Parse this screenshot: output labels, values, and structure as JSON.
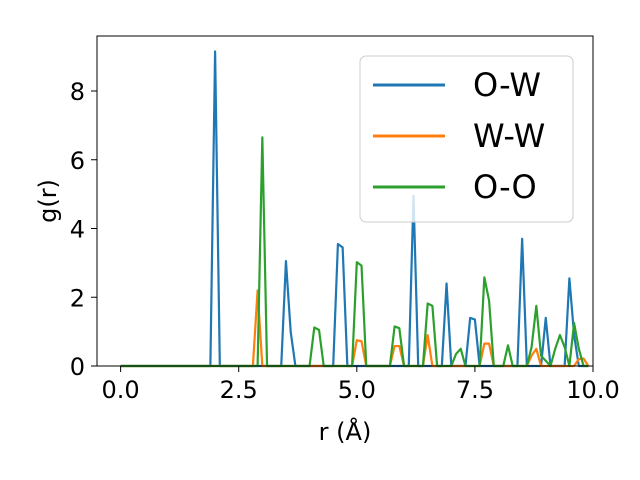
{
  "chart_data": {
    "type": "line",
    "xlabel": "r (Å)",
    "ylabel": "g(r)",
    "xlim": [
      -0.5,
      10.0
    ],
    "ylim": [
      0,
      9.6
    ],
    "xticks": [
      0.0,
      2.5,
      5.0,
      7.5,
      10.0
    ],
    "xtick_labels": [
      "0.0",
      "2.5",
      "5.0",
      "7.5",
      "10.0"
    ],
    "yticks": [
      0,
      2,
      4,
      6,
      8
    ],
    "ytick_labels": [
      "0",
      "2",
      "4",
      "6",
      "8"
    ],
    "grid": false,
    "legend_position": "top-right",
    "colors": {
      "O-W": "#1f77b4",
      "W-W": "#ff7f0e",
      "O-O": "#2ca02c"
    },
    "series": [
      {
        "name": "O-W",
        "x": [
          0.0,
          1.9,
          2.0,
          2.1,
          3.4,
          3.5,
          3.6,
          3.7,
          4.5,
          4.6,
          4.7,
          4.8,
          6.1,
          6.2,
          6.3,
          6.8,
          6.9,
          7.0,
          7.3,
          7.4,
          7.5,
          7.6,
          8.4,
          8.5,
          8.6,
          8.9,
          9.0,
          9.1,
          9.4,
          9.5,
          9.6,
          9.7,
          9.9
        ],
        "y": [
          0,
          0,
          9.15,
          0,
          0,
          3.05,
          1.0,
          0,
          0,
          3.55,
          3.45,
          0,
          0,
          4.95,
          0,
          0,
          2.4,
          0,
          0,
          1.4,
          1.35,
          0,
          0,
          3.7,
          0,
          0,
          1.4,
          0,
          0,
          2.55,
          0.9,
          0,
          0
        ]
      },
      {
        "name": "W-W",
        "x": [
          0.0,
          2.7,
          2.8,
          2.9,
          3.0,
          4.9,
          5.0,
          5.1,
          5.2,
          5.7,
          5.8,
          5.9,
          6.0,
          6.4,
          6.5,
          6.6,
          7.6,
          7.7,
          7.8,
          7.9,
          8.6,
          8.7,
          8.8,
          8.9,
          9.6,
          9.7,
          9.8,
          9.9
        ],
        "y": [
          0,
          0,
          0,
          2.2,
          0,
          0,
          0.75,
          0.72,
          0,
          0,
          0.58,
          0.58,
          0,
          0,
          0.9,
          0,
          0,
          0.65,
          0.65,
          0,
          0,
          0.3,
          0.5,
          0,
          0,
          0.2,
          0.22,
          0
        ]
      },
      {
        "name": "O-O",
        "x": [
          0.0,
          2.8,
          2.9,
          3.0,
          3.1,
          4.0,
          4.1,
          4.2,
          4.3,
          4.9,
          5.0,
          5.1,
          5.2,
          5.7,
          5.8,
          5.9,
          6.0,
          6.4,
          6.5,
          6.6,
          6.7,
          7.0,
          7.1,
          7.2,
          7.3,
          7.6,
          7.7,
          7.8,
          7.9,
          8.1,
          8.2,
          8.3,
          8.4,
          8.6,
          8.7,
          8.8,
          8.9,
          9.1,
          9.2,
          9.3,
          9.4,
          9.5,
          9.6,
          9.7,
          9.8,
          9.9
        ],
        "y": [
          0,
          0,
          0,
          6.65,
          0,
          0,
          1.12,
          1.05,
          0,
          0,
          3.02,
          2.92,
          0,
          0,
          1.15,
          1.1,
          0,
          0,
          1.82,
          1.75,
          0,
          0,
          0.35,
          0.5,
          0,
          0,
          2.58,
          1.9,
          0,
          0,
          0.6,
          0,
          0,
          0,
          0.55,
          1.75,
          0.3,
          0,
          0.5,
          0.9,
          0.55,
          0,
          1.25,
          0.5,
          0,
          0
        ]
      }
    ]
  }
}
